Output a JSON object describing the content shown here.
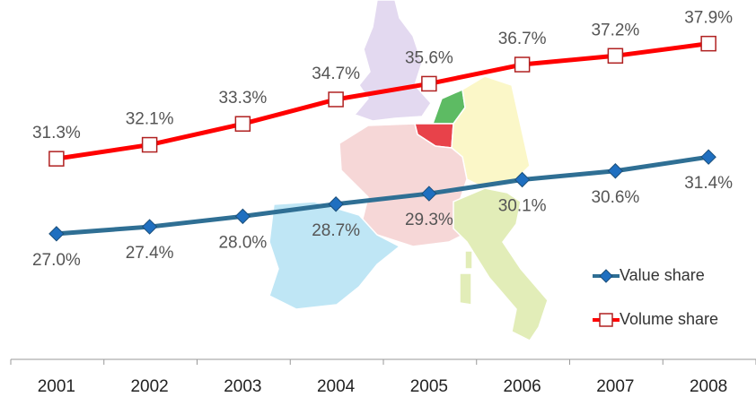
{
  "chart_data": {
    "type": "line",
    "categories": [
      "2001",
      "2002",
      "2003",
      "2004",
      "2005",
      "2006",
      "2007",
      "2008"
    ],
    "series": [
      {
        "name": "Value share",
        "color": "#2f6f94",
        "marker": "diamond",
        "marker_color": "#1f6fc0",
        "values": [
          27.0,
          27.4,
          28.0,
          28.7,
          29.3,
          30.1,
          30.6,
          31.4
        ],
        "value_labels": [
          "27.0%",
          "27.4%",
          "28.0%",
          "28.7%",
          "29.3%",
          "30.1%",
          "30.6%",
          "31.4%"
        ]
      },
      {
        "name": "Volume share",
        "color": "#ff0000",
        "marker": "square",
        "marker_color": "#ffffff",
        "values": [
          31.3,
          32.1,
          33.3,
          34.7,
          35.6,
          36.7,
          37.2,
          37.9
        ],
        "value_labels": [
          "31.3%",
          "32.1%",
          "33.3%",
          "34.7%",
          "35.6%",
          "36.7%",
          "37.2%",
          "37.9%"
        ]
      }
    ],
    "ylim": [
      19.8,
      40.4
    ],
    "legend": "bottom-right"
  }
}
